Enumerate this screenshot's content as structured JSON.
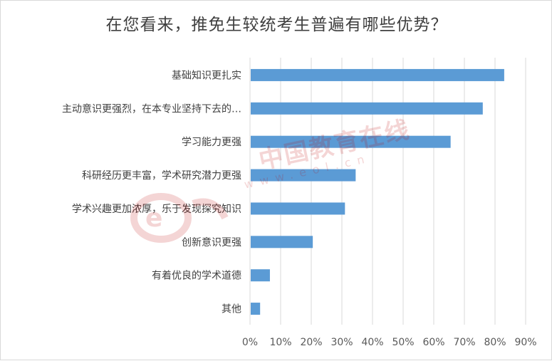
{
  "chart_data": {
    "type": "bar",
    "orientation": "horizontal",
    "title": "在您看来，推免生较统考生普遍有哪些优势？",
    "categories": [
      "基础知识更扎实",
      "主动意识更强烈，在本专业坚持下去的…",
      "学习能力更强",
      "科研经历更丰富，学术研究潜力更强",
      "学术兴趣更加浓厚，乐于发现探究知识",
      "创新意识更强",
      "有着优良的学术道德",
      "其他"
    ],
    "values": [
      0.83,
      0.76,
      0.655,
      0.345,
      0.31,
      0.205,
      0.065,
      0.033
    ],
    "xlim": [
      0,
      0.9
    ],
    "xticks": [
      0,
      0.1,
      0.2,
      0.3,
      0.4,
      0.5,
      0.6,
      0.7,
      0.8,
      0.9
    ],
    "xtick_labels": [
      "0%",
      "10%",
      "20%",
      "30%",
      "40%",
      "50%",
      "60%",
      "70%",
      "80%",
      "90%"
    ],
    "grid": true,
    "legend": "none",
    "bar_color": "#5b9bd5",
    "grid_color": "#d9d9d9"
  },
  "watermark": {
    "text": "中国教育在线",
    "url": "www.eol.cn",
    "color": "#c00000"
  }
}
